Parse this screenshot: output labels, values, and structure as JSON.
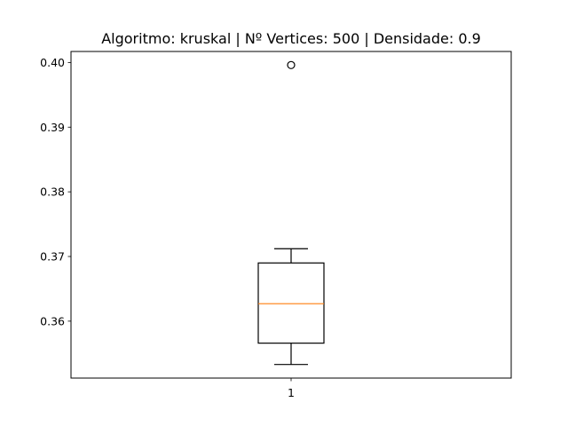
{
  "chart_data": {
    "type": "box",
    "title": "Algoritmo: kruskal | Nº Vertices: 500 | Densidade: 0.9",
    "xlabel": "",
    "ylabel": "",
    "categories": [
      "1"
    ],
    "ylim": [
      0.3512,
      0.4017
    ],
    "yticks": [
      0.36,
      0.37,
      0.38,
      0.39,
      0.4
    ],
    "ytick_labels": [
      "0.36",
      "0.37",
      "0.38",
      "0.39",
      "0.40"
    ],
    "boxes": [
      {
        "label": "1",
        "whisker_low": 0.3533,
        "q1": 0.3566,
        "median": 0.3627,
        "q3": 0.369,
        "whisker_high": 0.3712,
        "outliers": [
          0.3996
        ]
      }
    ],
    "grid": false,
    "colors": {
      "box": "#000000",
      "median": "#ff7f0e",
      "outlier_edge": "#000000"
    }
  }
}
